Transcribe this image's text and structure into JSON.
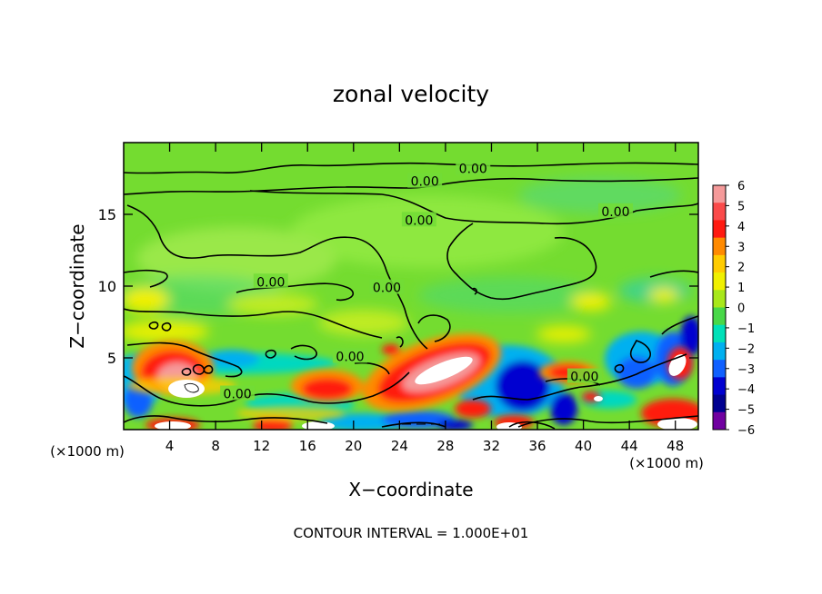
{
  "chart_data": {
    "type": "heatmap",
    "title": "zonal velocity",
    "xlabel": "X−coordinate",
    "ylabel": "Z−coordinate",
    "x_unit_left": "(×1000 m)",
    "x_unit_right": "(×1000 m)",
    "footer": "CONTOUR INTERVAL = 1.000E+01",
    "xlim": [
      0,
      50
    ],
    "ylim": [
      0,
      20
    ],
    "x_ticks": [
      4,
      8,
      12,
      16,
      20,
      24,
      28,
      32,
      36,
      40,
      44,
      48
    ],
    "y_ticks": [
      5,
      10,
      15
    ],
    "colorbar": {
      "range": [
        -6,
        6
      ],
      "ticks": [
        6,
        5,
        4,
        3,
        2,
        1,
        0,
        -1,
        -2,
        -3,
        -4,
        -5,
        -6
      ],
      "tick_labels": [
        "6",
        "5",
        "4",
        "3",
        "2",
        "1",
        "0",
        "−1",
        "−2",
        "−3",
        "−4",
        "−5",
        "−6"
      ],
      "colors": [
        "#f59a9a",
        "#fa4a4a",
        "#ff1a10",
        "#ff8a00",
        "#ffcc00",
        "#f0f000",
        "#a8e81a",
        "#48d848",
        "#00e0b8",
        "#00b0f0",
        "#1060ff",
        "#0000d0",
        "#000090",
        "#7000a0"
      ]
    },
    "contour_labels": [
      {
        "text": "0.00",
        "x": 30.4,
        "y": 18.2
      },
      {
        "text": "0.00",
        "x": 26.2,
        "y": 17.3
      },
      {
        "text": "0.00",
        "x": 42.8,
        "y": 15.2
      },
      {
        "text": "0.00",
        "x": 25.7,
        "y": 14.6
      },
      {
        "text": "0.00",
        "x": 12.8,
        "y": 10.3
      },
      {
        "text": "0.00",
        "x": 22.9,
        "y": 9.9
      },
      {
        "text": "0.00",
        "x": 19.7,
        "y": 5.1
      },
      {
        "text": "0.00",
        "x": 9.9,
        "y": 2.5
      },
      {
        "text": "0.00",
        "x": 40.1,
        "y": 3.7
      }
    ]
  }
}
